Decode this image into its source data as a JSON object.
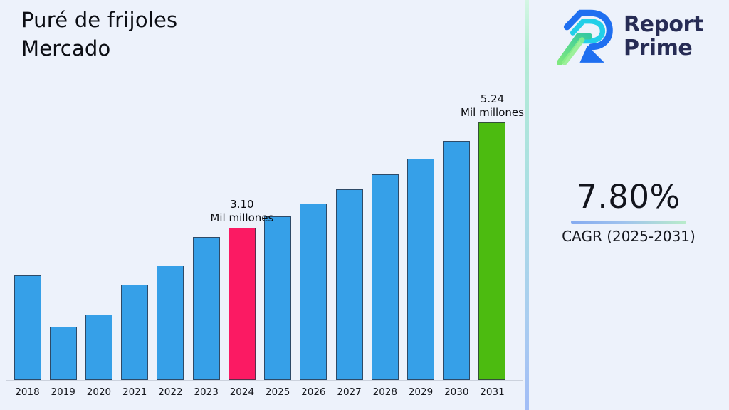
{
  "title": "Puré de frijoles\nMercado",
  "logo": {
    "name": "Report Prime",
    "line1": "Report",
    "line2": "Prime"
  },
  "cagr": {
    "value": "7.80%",
    "label": "CAGR (2025-2031)"
  },
  "colors": {
    "background": "#edf2fb",
    "bar_default": "#36a0e8",
    "bar_2024": "#fb1a63",
    "bar_2031": "#4cbb10",
    "bar_border": "#3d4454",
    "divider_top": "#b4edd4",
    "divider_bottom": "#a2bdf6",
    "logo_text": "#272c55",
    "logo_blue": "#1f6ff0",
    "logo_cyan": "#22cfe8",
    "logo_green": "#62dd8d"
  },
  "chart_data": {
    "type": "bar",
    "title": "Puré de frijoles Mercado",
    "xlabel": "",
    "ylabel": "",
    "unit": "Mil millones",
    "grid": false,
    "legend": false,
    "ylim": [
      0,
      5.8
    ],
    "categories": [
      "2018",
      "2019",
      "2020",
      "2021",
      "2022",
      "2023",
      "2024",
      "2025",
      "2026",
      "2027",
      "2028",
      "2029",
      "2030",
      "2031"
    ],
    "values": [
      2.13,
      1.09,
      1.34,
      1.94,
      2.34,
      2.92,
      3.1,
      3.34,
      3.6,
      3.88,
      4.19,
      4.51,
      4.87,
      5.24
    ],
    "highlighted": {
      "2024": "#fb1a63",
      "2031": "#4cbb10"
    },
    "annotations": [
      {
        "category": "2024",
        "value_label": "3.10",
        "unit_label": "Mil millones"
      },
      {
        "category": "2031",
        "value_label": "5.24",
        "unit_label": "Mil millones"
      }
    ]
  }
}
